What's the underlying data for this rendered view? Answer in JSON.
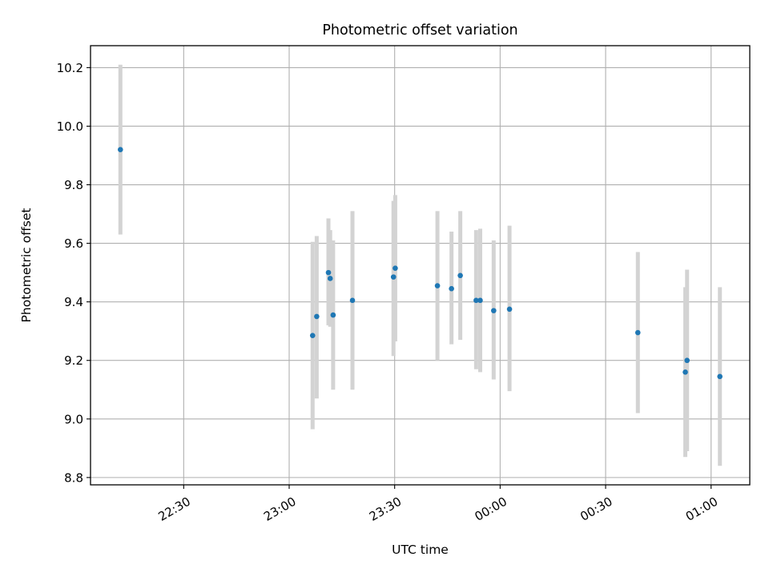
{
  "chart_data": {
    "type": "scatter",
    "title": "Photometric offset variation",
    "xlabel": "UTC time",
    "ylabel": "Photometric offset",
    "x_axis": {
      "kind": "time",
      "range": [
        "22:03:30",
        "01:11:00"
      ],
      "ticks": [
        "22:30",
        "23:00",
        "23:30",
        "00:00",
        "00:30",
        "01:00"
      ]
    },
    "y_axis": {
      "range": [
        8.775,
        10.275
      ],
      "ticks": [
        "8.8",
        "9.0",
        "9.2",
        "9.4",
        "9.6",
        "9.8",
        "10.0",
        "10.2"
      ]
    },
    "grid": true,
    "colors": {
      "points": "#1f77b4",
      "errorbars": "#d3d3d3",
      "grid": "#b0b0b0"
    },
    "series": [
      {
        "points": [
          {
            "t": "22:12:00",
            "y": 9.92,
            "ymin": 9.63,
            "ymax": 10.21
          },
          {
            "t": "23:06:40",
            "y": 9.285,
            "ymin": 8.965,
            "ymax": 9.605
          },
          {
            "t": "23:07:50",
            "y": 9.35,
            "ymin": 9.07,
            "ymax": 9.625
          },
          {
            "t": "23:11:10",
            "y": 9.5,
            "ymin": 9.32,
            "ymax": 9.685
          },
          {
            "t": "23:11:40",
            "y": 9.48,
            "ymin": 9.315,
            "ymax": 9.645
          },
          {
            "t": "23:12:30",
            "y": 9.355,
            "ymin": 9.1,
            "ymax": 9.61
          },
          {
            "t": "23:18:00",
            "y": 9.405,
            "ymin": 9.1,
            "ymax": 9.71
          },
          {
            "t": "23:29:40",
            "y": 9.485,
            "ymin": 9.215,
            "ymax": 9.745
          },
          {
            "t": "23:30:10",
            "y": 9.515,
            "ymin": 9.265,
            "ymax": 9.765
          },
          {
            "t": "23:42:10",
            "y": 9.455,
            "ymin": 9.2,
            "ymax": 9.71
          },
          {
            "t": "23:46:10",
            "y": 9.445,
            "ymin": 9.255,
            "ymax": 9.64
          },
          {
            "t": "23:48:40",
            "y": 9.49,
            "ymin": 9.27,
            "ymax": 9.71
          },
          {
            "t": "23:53:10",
            "y": 9.405,
            "ymin": 9.17,
            "ymax": 9.645
          },
          {
            "t": "23:54:20",
            "y": 9.405,
            "ymin": 9.16,
            "ymax": 9.65
          },
          {
            "t": "23:58:10",
            "y": 9.37,
            "ymin": 9.135,
            "ymax": 9.61
          },
          {
            "t": "00:02:40",
            "y": 9.375,
            "ymin": 9.095,
            "ymax": 9.66
          },
          {
            "t": "00:39:10",
            "y": 9.295,
            "ymin": 9.02,
            "ymax": 9.57
          },
          {
            "t": "00:52:40",
            "y": 9.16,
            "ymin": 8.87,
            "ymax": 9.45
          },
          {
            "t": "00:53:10",
            "y": 9.2,
            "ymin": 8.89,
            "ymax": 9.51
          },
          {
            "t": "01:02:30",
            "y": 9.145,
            "ymin": 8.84,
            "ymax": 9.45
          }
        ]
      }
    ]
  }
}
